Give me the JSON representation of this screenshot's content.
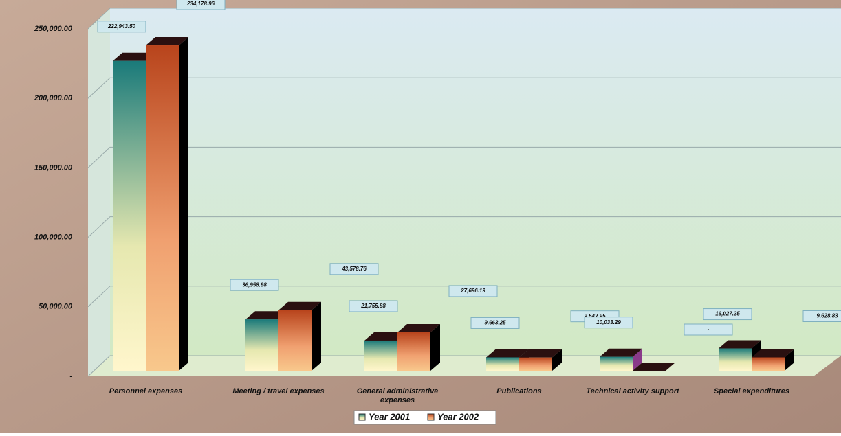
{
  "chart_data": {
    "type": "bar",
    "categories": [
      "Personnel expenses",
      "Meeting / travel expenses",
      "General administrative expenses",
      "Publications",
      "Technical activity support",
      "Special expenditures"
    ],
    "series": [
      {
        "name": "Year 2001",
        "color": "#1a7a7a",
        "values": [
          222943.5,
          36958.98,
          21755.88,
          9663.25,
          10033.29,
          16027.25
        ],
        "value_labels": [
          "222,943.50",
          "36,958.98",
          "21,755.88",
          "9,663.25",
          "10,033.29",
          "16,027.25"
        ]
      },
      {
        "name": "Year 2002",
        "color": "#b8441c",
        "values": [
          234178.96,
          43578.76,
          27696.19,
          9542.95,
          0,
          9628.83
        ],
        "value_labels": [
          "234,178.96",
          "43,578.76",
          "27,696.19",
          "9,542.95",
          "-",
          "9,628.83"
        ]
      }
    ],
    "ylim": [
      0,
      250000
    ],
    "yticks": [
      {
        "value": 0,
        "label": "-"
      },
      {
        "value": 50000,
        "label": "50,000.00"
      },
      {
        "value": 100000,
        "label": "100,000.00"
      },
      {
        "value": 150000,
        "label": "150,000.00"
      },
      {
        "value": 200000,
        "label": "200,000.00"
      },
      {
        "value": 250000,
        "label": "250,000.00"
      }
    ],
    "grid": true
  }
}
